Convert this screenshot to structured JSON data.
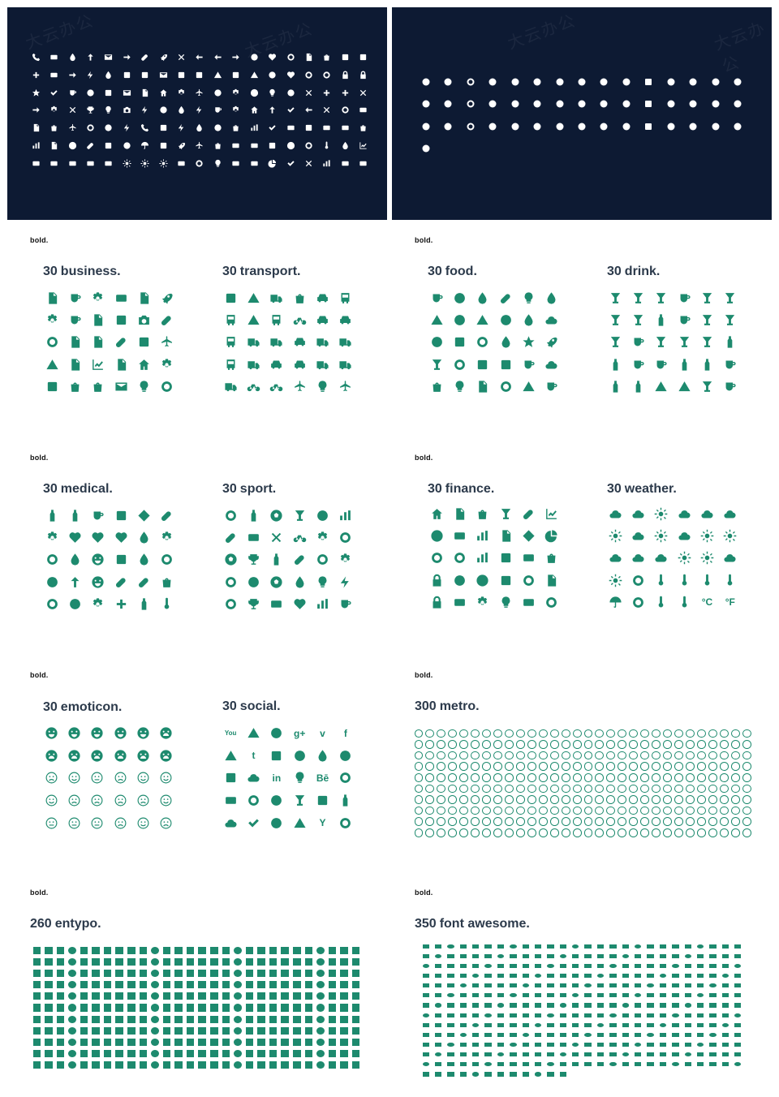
{
  "colors": {
    "navy": "#0d1a33",
    "green": "#1d8a6e",
    "title": "#2c3a4b",
    "white": "#ffffff"
  },
  "watermark": "大云办公",
  "white_icons": {
    "left_panel": {
      "rows": 7,
      "cols": 19,
      "icon_names": [
        "phone",
        "mobile",
        "mouse",
        "signpost",
        "envelope",
        "paper-plane",
        "pencil",
        "feather",
        "paperclip",
        "link-off",
        "reply",
        "reply-all",
        "forward",
        "user",
        "users",
        "voicemail",
        "clipboard",
        "cart",
        "archive"
      ]
    },
    "right_panel": {
      "rows": 4,
      "cols": 15,
      "icon_names": [
        "github",
        "flickr",
        "vimeo",
        "twitter",
        "facebook",
        "google-plus",
        "pinterest",
        "tumblr",
        "linkedin",
        "dribbble",
        "stumbleupon",
        "lastfm",
        "rdio",
        "spotify",
        "instagram",
        "dropbox",
        "evernote",
        "skype",
        "paypal",
        "soundcloud",
        "behance",
        "basecamp",
        "sina-weibo",
        "smashing"
      ]
    }
  },
  "sections": [
    {
      "tag": "bold.",
      "title_num": "30",
      "title_text": "business."
    },
    {
      "tag": "",
      "title_num": "30",
      "title_text": "transport."
    },
    {
      "tag": "bold.",
      "title_num": "30",
      "title_text": "food."
    },
    {
      "tag": "",
      "title_num": "30",
      "title_text": "drink."
    },
    {
      "tag": "bold.",
      "title_num": "30",
      "title_text": "medical."
    },
    {
      "tag": "",
      "title_num": "30",
      "title_text": "sport."
    },
    {
      "tag": "bold.",
      "title_num": "30",
      "title_text": "finance."
    },
    {
      "tag": "",
      "title_num": "30",
      "title_text": "weather."
    },
    {
      "tag": "bold.",
      "title_num": "30",
      "title_text": "emoticon."
    },
    {
      "tag": "",
      "title_num": "30",
      "title_text": "social."
    },
    {
      "tag": "bold.",
      "title_num": "300",
      "title_text": "metro."
    },
    {
      "tag": "bold.",
      "title_num": "260",
      "title_text": "entypo."
    },
    {
      "tag": "bold.",
      "title_num": "350",
      "title_text": "font awesome."
    }
  ],
  "weather_text": {
    "celsius": "°C",
    "fahrenheit": "°F"
  },
  "social_text": {
    "tumblr": "t",
    "linkedin": "in",
    "behance": "Bē",
    "yahoo": "Y",
    "vimeo": "v",
    "facebook": "f",
    "google_plus": "g+",
    "youtube": "You"
  }
}
